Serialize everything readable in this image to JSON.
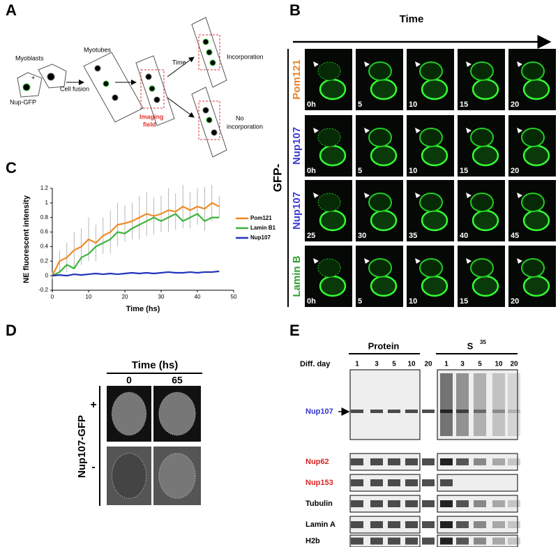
{
  "panels": {
    "a": "A",
    "b": "B",
    "c": "C",
    "d": "D",
    "e": "E"
  },
  "panel_a": {
    "myoblasts": "Myoblasts",
    "plus": "+",
    "nup_gfp": "Nup-GFP",
    "cell_fusion": "Cell fusion",
    "myotubes": "Myotubes",
    "imaging_field": [
      "Imaging",
      "field"
    ],
    "time": "Time",
    "incorporation": "Incorporation",
    "no_incorporation": [
      "No",
      "incorporation"
    ]
  },
  "panel_b": {
    "time": "Time",
    "prefix": "GFP-",
    "rows": [
      {
        "label": "Pom121",
        "color": "#e8822a",
        "frames": [
          "0h",
          "5",
          "10",
          "15",
          "20"
        ]
      },
      {
        "label": "Nup107",
        "color": "#3c3cd0",
        "frames": [
          "0h",
          "5",
          "10",
          "15",
          "20"
        ]
      },
      {
        "label": "Nup107",
        "color": "#3c3cd0",
        "frames": [
          "25",
          "30",
          "35",
          "40",
          "45"
        ]
      },
      {
        "label": "Lamin B",
        "color": "#2fa02f",
        "frames": [
          "0h",
          "5",
          "10",
          "15",
          "20"
        ]
      }
    ]
  },
  "chart_data": {
    "type": "line",
    "y_label": "NE fluorescent intensity",
    "x_label": "Time (hs)",
    "x": [
      0,
      2,
      4,
      6,
      8,
      10,
      12,
      14,
      16,
      18,
      20,
      22,
      24,
      26,
      28,
      30,
      32,
      34,
      36,
      38,
      40,
      42,
      44,
      46
    ],
    "series": [
      {
        "name": "Pom121",
        "color": "#f08a24",
        "values": [
          0,
          0.2,
          0.25,
          0.35,
          0.4,
          0.5,
          0.45,
          0.55,
          0.6,
          0.7,
          0.72,
          0.75,
          0.8,
          0.85,
          0.82,
          0.85,
          0.9,
          0.88,
          0.95,
          0.9,
          0.95,
          0.92,
          1,
          0.95
        ],
        "errors": [
          0.05,
          0.15,
          0.2,
          0.25,
          0.25,
          0.3,
          0.25,
          0.25,
          0.3,
          0.3,
          0.25,
          0.25,
          0.3,
          0.3,
          0.25,
          0.25,
          0.3,
          0.25,
          0.3,
          0.25,
          0.25,
          0.3,
          0.25,
          0.15
        ]
      },
      {
        "name": "Lamin B1",
        "color": "#3cb43c",
        "values": [
          0,
          0.05,
          0.15,
          0.1,
          0.25,
          0.3,
          0.4,
          0.45,
          0.5,
          0.6,
          0.58,
          0.65,
          0.7,
          0.75,
          0.8,
          0.75,
          0.8,
          0.85,
          0.75,
          0.8,
          0.85,
          0.75,
          0.8,
          0.8
        ]
      },
      {
        "name": "Nup107",
        "color": "#2233bb",
        "values": [
          0,
          0.01,
          0,
          0.02,
          0.01,
          0.02,
          0.03,
          0.02,
          0.03,
          0.02,
          0.03,
          0.04,
          0.03,
          0.04,
          0.03,
          0.04,
          0.05,
          0.04,
          0.04,
          0.05,
          0.04,
          0.05,
          0.05,
          0.06
        ]
      }
    ],
    "xlim": [
      0,
      50
    ],
    "xticks": [
      0,
      10,
      20,
      30,
      40,
      50
    ],
    "ylim": [
      -0.2,
      1.2
    ],
    "yticks": [
      -0.2,
      0,
      0.2,
      0.4,
      0.6,
      0.8,
      1,
      1.2
    ]
  },
  "panel_d": {
    "time": "Time (hs)",
    "times": [
      "0",
      "65"
    ],
    "label": "Nup107-GFP",
    "rows": [
      "+",
      "-"
    ]
  },
  "panel_e": {
    "protein": "Protein",
    "s": "S",
    "s_sup": "35",
    "diff_day": "Diff. day",
    "days": [
      "1",
      "3",
      "5",
      "10",
      "20"
    ],
    "blots": [
      {
        "label": "Nup107",
        "color": "#3333cc"
      },
      {
        "label": "Nup62",
        "color": "#dd2222"
      },
      {
        "label": "Nup153",
        "color": "#dd2222"
      },
      {
        "label": "Tubulin",
        "color": "#000000"
      },
      {
        "label": "Lamin A",
        "color": "#000000"
      },
      {
        "label": "H2b",
        "color": "#000000"
      }
    ]
  }
}
